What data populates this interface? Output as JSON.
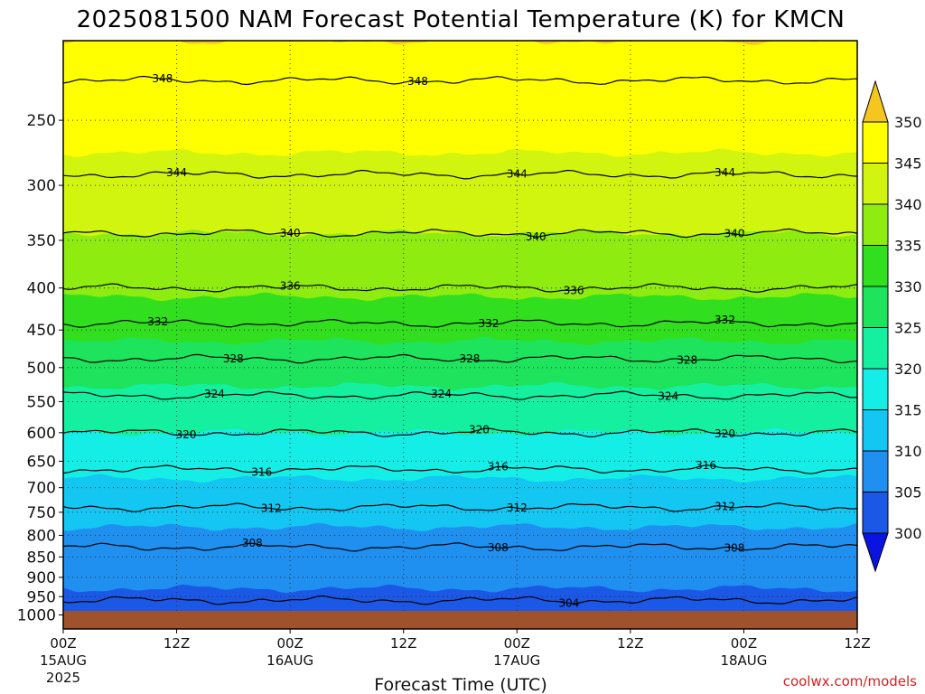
{
  "title": "2025081500 NAM Forecast Potential Temperature (K) for KMCN",
  "source": "coolwx.com/models",
  "chart_data": {
    "type": "heatmap",
    "title": "2025081500 NAM Forecast Potential Temperature (K) for KMCN",
    "xlabel": "Forecast Time (UTC)",
    "ylabel": "",
    "y_scale": "log",
    "ylim": [
      1040,
      200
    ],
    "xlim_hours": [
      0,
      84
    ],
    "x_ticks": [
      {
        "label": "00Z",
        "sub": "15AUG",
        "sub2": "2025"
      },
      {
        "label": "12Z",
        "sub": "",
        "sub2": ""
      },
      {
        "label": "00Z",
        "sub": "16AUG",
        "sub2": ""
      },
      {
        "label": "12Z",
        "sub": "",
        "sub2": ""
      },
      {
        "label": "00Z",
        "sub": "17AUG",
        "sub2": ""
      },
      {
        "label": "12Z",
        "sub": "",
        "sub2": ""
      },
      {
        "label": "00Z",
        "sub": "18AUG",
        "sub2": ""
      },
      {
        "label": "12Z",
        "sub": "",
        "sub2": ""
      }
    ],
    "y_ticks": [
      250,
      300,
      350,
      400,
      450,
      500,
      550,
      600,
      650,
      700,
      750,
      800,
      850,
      900,
      950,
      1000
    ],
    "surface_pressure": 1000,
    "profile": [
      {
        "p": 1000,
        "t": 302
      },
      {
        "p": 950,
        "t": 304.5
      },
      {
        "p": 850,
        "t": 307
      },
      {
        "p": 750,
        "t": 311.5
      },
      {
        "p": 700,
        "t": 314
      },
      {
        "p": 600,
        "t": 320
      },
      {
        "p": 500,
        "t": 327
      },
      {
        "p": 400,
        "t": 336
      },
      {
        "p": 300,
        "t": 343.5
      },
      {
        "p": 250,
        "t": 346.5
      },
      {
        "p": 200,
        "t": 349.5
      }
    ],
    "contour_levels": [
      304,
      308,
      312,
      316,
      320,
      324,
      328,
      332,
      336,
      340,
      344,
      348
    ],
    "contour_labels": [
      {
        "value": 348,
        "hours": [
          10.5,
          37.5
        ]
      },
      {
        "value": 344,
        "hours": [
          12,
          48,
          70
        ]
      },
      {
        "value": 340,
        "hours": [
          24,
          50,
          71
        ]
      },
      {
        "value": 336,
        "hours": [
          24,
          54
        ]
      },
      {
        "value": 332,
        "hours": [
          10,
          45,
          70
        ]
      },
      {
        "value": 328,
        "hours": [
          18,
          43,
          66
        ]
      },
      {
        "value": 324,
        "hours": [
          16,
          40,
          64
        ]
      },
      {
        "value": 320,
        "hours": [
          13,
          44,
          70
        ]
      },
      {
        "value": 316,
        "hours": [
          21,
          46,
          68
        ]
      },
      {
        "value": 312,
        "hours": [
          22,
          48,
          70
        ]
      },
      {
        "value": 308,
        "hours": [
          20,
          46,
          71
        ]
      },
      {
        "value": 304,
        "hours": [
          53.5
        ]
      }
    ],
    "colorbar": {
      "levels": [
        300,
        305,
        310,
        315,
        320,
        325,
        330,
        335,
        340,
        345,
        350
      ],
      "colors": [
        "#0a14e0",
        "#1b58e6",
        "#1f8ff0",
        "#14c6f2",
        "#14eee6",
        "#14f0a0",
        "#1ee35c",
        "#31df1e",
        "#8eec10",
        "#d2f510",
        "#ffff00",
        "#f5c520"
      ],
      "extend": "both"
    },
    "ground_color": "#a0522d"
  }
}
